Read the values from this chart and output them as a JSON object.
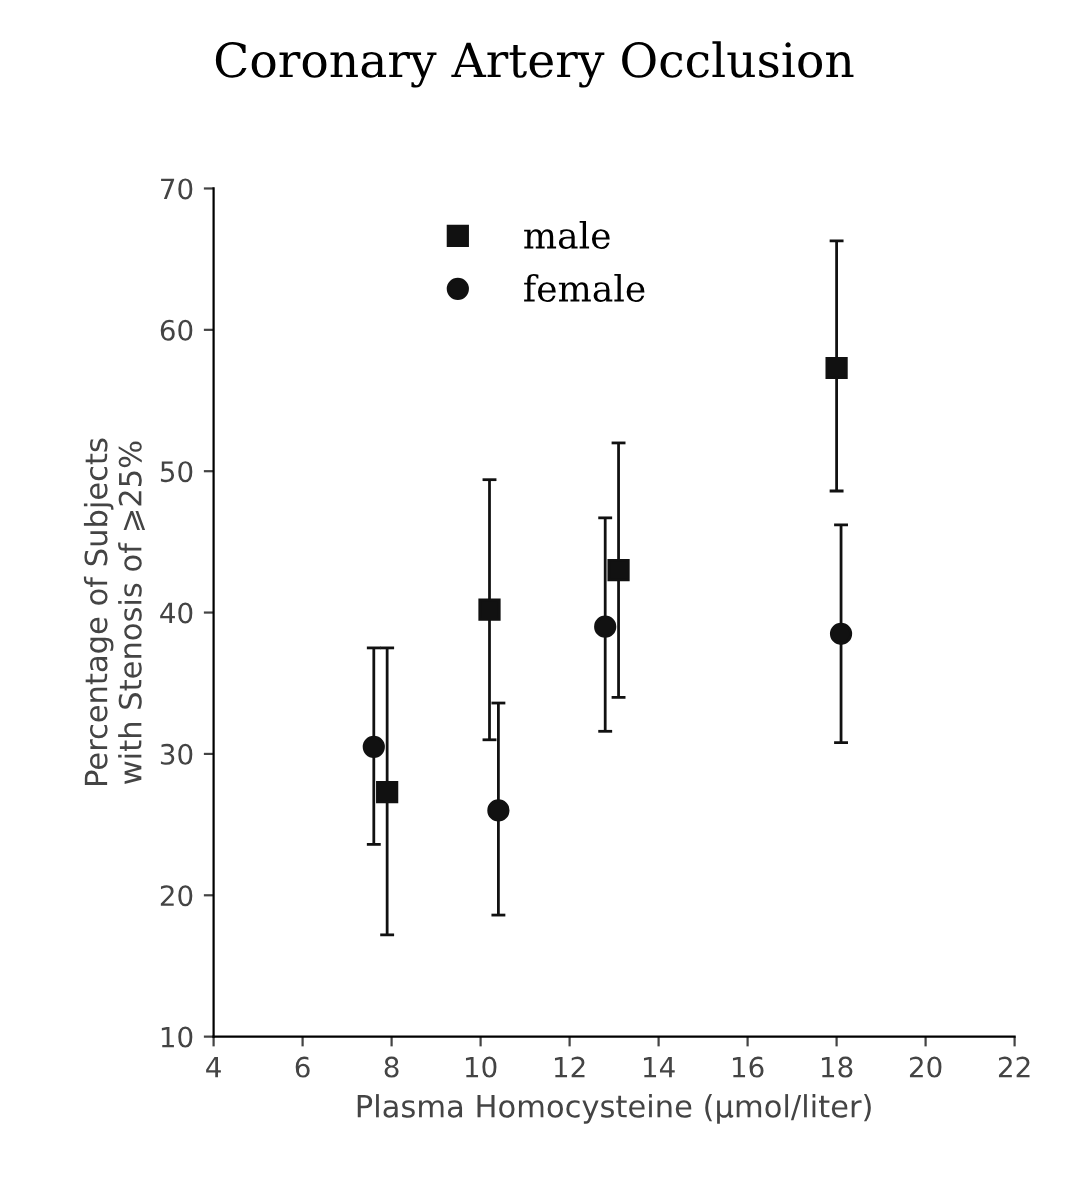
{
  "chart_data": {
    "type": "scatter",
    "title": "Coronary Artery Occlusion",
    "xlabel": "Plasma Homocysteine (μmol/liter)",
    "ylabel": "Percentage of Subjects\nwith Stenosis of ⩾25%",
    "series": [
      {
        "name": "male",
        "color": "#111111",
        "marker": "square",
        "x": [
          7.9,
          10.2,
          13.1,
          18.0
        ],
        "values": [
          27.3,
          40.2,
          43.0,
          57.3
        ],
        "errors": [
          [
            17.2,
            37.5
          ],
          [
            31.0,
            49.4
          ],
          [
            34.0,
            52.0
          ],
          [
            48.6,
            66.3
          ]
        ]
      },
      {
        "name": "female",
        "color": "#111111",
        "marker": "circle",
        "x": [
          7.6,
          10.4,
          12.8,
          18.1
        ],
        "values": [
          30.5,
          26.0,
          39.0,
          38.5
        ],
        "errors": [
          [
            23.6,
            37.5
          ],
          [
            18.6,
            33.6
          ],
          [
            31.6,
            46.7
          ],
          [
            30.8,
            46.2
          ]
        ]
      }
    ],
    "xlim": [
      4,
      22
    ],
    "xticks": [
      4,
      6,
      8,
      10,
      12,
      14,
      16,
      18,
      20,
      22
    ],
    "ylim": [
      10,
      70
    ],
    "yticks": [
      10,
      20,
      30,
      40,
      50,
      60,
      70
    ],
    "grid": false,
    "legend": "top"
  }
}
